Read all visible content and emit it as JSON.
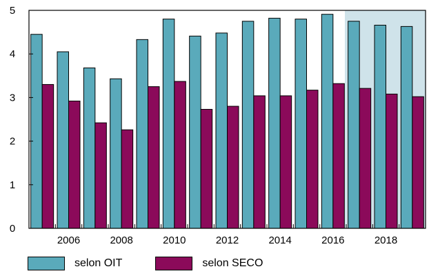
{
  "chart_data": {
    "type": "bar",
    "x": [
      2005,
      2006,
      2007,
      2008,
      2009,
      2010,
      2011,
      2012,
      2013,
      2014,
      2015,
      2016,
      2017,
      2018,
      2019
    ],
    "x_tick_labels": [
      "2006",
      "2008",
      "2010",
      "2012",
      "2014",
      "2016",
      "2018"
    ],
    "series": [
      {
        "name": "selon OIT",
        "color": "#5aaabb",
        "values": [
          4.45,
          4.05,
          3.68,
          3.43,
          4.33,
          4.8,
          4.41,
          4.48,
          4.75,
          4.82,
          4.8,
          4.91,
          4.75,
          4.66,
          4.63
        ]
      },
      {
        "name": "selon SECO",
        "color": "#8b0a5a",
        "values": [
          3.3,
          2.92,
          2.42,
          2.26,
          3.25,
          3.37,
          2.73,
          2.8,
          3.04,
          3.04,
          3.17,
          3.32,
          3.21,
          3.08,
          3.02
        ]
      }
    ],
    "ylim": [
      0,
      5
    ],
    "y_ticks": [
      0,
      1,
      2,
      3,
      4,
      5
    ],
    "shaded_region": {
      "from_year": 2017,
      "to_year": 2019,
      "color": "#cfe3ea"
    },
    "grid": false,
    "legend_position": "bottom",
    "title": "",
    "xlabel": "",
    "ylabel": ""
  }
}
